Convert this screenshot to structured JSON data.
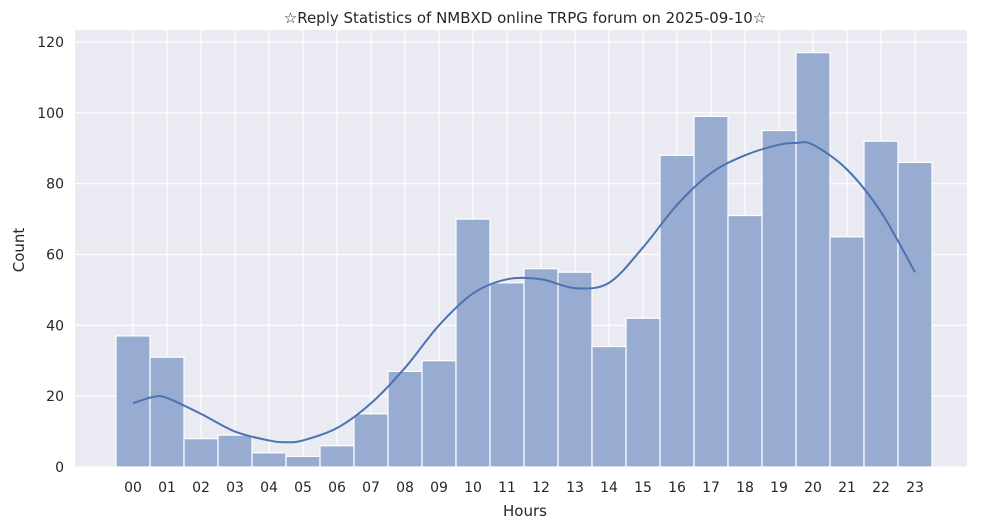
{
  "chart_data": {
    "type": "bar",
    "title": "☆Reply Statistics of NMBXD online TRPG forum on 2025-09-10☆",
    "xlabel": "Hours",
    "ylabel": "Count",
    "ylim": [
      0,
      123
    ],
    "yticks": [
      0,
      20,
      40,
      60,
      80,
      100,
      120
    ],
    "grid": true,
    "categories": [
      "00",
      "01",
      "02",
      "03",
      "04",
      "05",
      "06",
      "07",
      "08",
      "09",
      "10",
      "11",
      "12",
      "13",
      "14",
      "15",
      "16",
      "17",
      "18",
      "19",
      "20",
      "21",
      "22",
      "23"
    ],
    "values": [
      37,
      31,
      8,
      9,
      4,
      3,
      6,
      15,
      27,
      30,
      70,
      52,
      56,
      55,
      34,
      42,
      88,
      99,
      71,
      95,
      117,
      65,
      92,
      86
    ],
    "kde": {
      "x": [
        0,
        0.6,
        1,
        2,
        3,
        4,
        4.5,
        5,
        6,
        7,
        8,
        9,
        10,
        11,
        12,
        13,
        14,
        15,
        16,
        17,
        18,
        19,
        19.5,
        20,
        21,
        22,
        23
      ],
      "y": [
        18,
        19.8,
        19.5,
        15,
        10,
        7.5,
        7,
        7.5,
        11,
        18,
        28,
        40,
        49,
        53,
        53,
        50.5,
        52,
        62,
        74,
        83,
        88,
        91,
        91.5,
        91,
        84,
        72,
        55
      ]
    },
    "colors": {
      "bar": "#98abd0",
      "line": "#4c72b0",
      "background": "#eaeaf2"
    }
  }
}
